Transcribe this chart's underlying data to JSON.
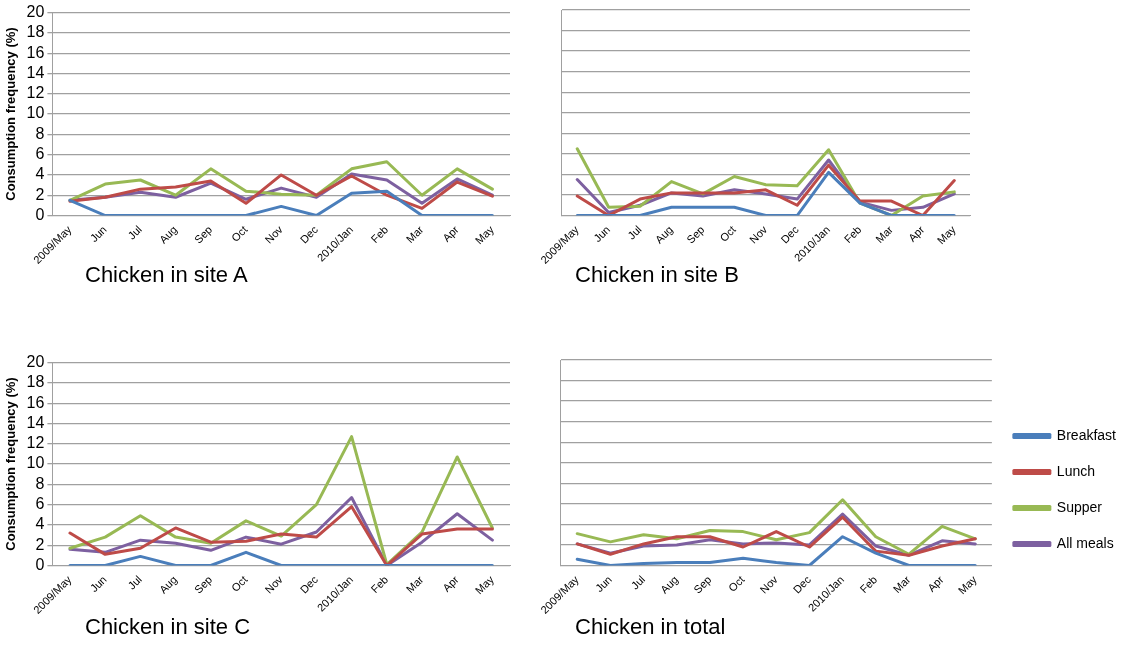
{
  "chart_data": [
    {
      "type": "line",
      "title": "Chicken in site A",
      "ylabel": "Consumption frequency (%)",
      "categories": [
        "2009/May",
        "Jun",
        "Jul",
        "Aug",
        "Sep",
        "Oct",
        "Nov",
        "Dec",
        "2010/Jan",
        "Feb",
        "Mar",
        "Apr",
        "May"
      ],
      "ylim": [
        0,
        20
      ],
      "yticks": [
        0,
        2,
        4,
        6,
        8,
        10,
        12,
        14,
        16,
        18,
        20
      ],
      "grid": "y",
      "legend": false,
      "marker": "none",
      "series": [
        {
          "color": "#4a7ebb",
          "values": [
            1.5,
            0,
            0,
            0,
            0,
            0,
            0.9,
            0,
            2.2,
            2.4,
            0,
            0,
            0
          ]
        },
        {
          "color": "#be4b48",
          "values": [
            1.4,
            1.8,
            2.6,
            2.8,
            3.4,
            1.2,
            4.0,
            2.0,
            3.9,
            2.0,
            0.7,
            3.3,
            1.9
          ]
        },
        {
          "color": "#98b954",
          "values": [
            1.5,
            3.1,
            3.5,
            2.0,
            4.6,
            2.4,
            2.1,
            2.0,
            4.6,
            5.3,
            2.0,
            4.6,
            2.6
          ]
        },
        {
          "color": "#7d60a0",
          "values": [
            1.5,
            1.8,
            2.3,
            1.8,
            3.2,
            1.6,
            2.7,
            1.8,
            4.1,
            3.5,
            1.2,
            3.6,
            2.0
          ]
        }
      ]
    },
    {
      "type": "line",
      "title": "Chicken in site B",
      "categories": [
        "2009/May",
        "Jun",
        "Jul",
        "Aug",
        "Sep",
        "Oct",
        "Nov",
        "Dec",
        "2010/Jan",
        "Feb",
        "Mar",
        "Apr",
        "May"
      ],
      "ylim": [
        0,
        20
      ],
      "yticks": [
        0,
        2,
        4,
        6,
        8,
        10,
        12,
        14,
        16,
        18,
        20
      ],
      "tick_labels": "x",
      "grid": "y",
      "legend": false,
      "marker": "none",
      "series": [
        {
          "color": "#4a7ebb",
          "values": [
            0,
            0,
            0,
            0.8,
            0.8,
            0.8,
            0,
            0,
            4.2,
            1.2,
            0,
            0,
            0
          ]
        },
        {
          "color": "#be4b48",
          "values": [
            1.9,
            0,
            1.6,
            2.2,
            2.2,
            2.2,
            2.5,
            1.0,
            4.9,
            1.4,
            1.4,
            0,
            3.4
          ]
        },
        {
          "color": "#98b954",
          "values": [
            6.5,
            0.8,
            0.9,
            3.3,
            2.1,
            3.8,
            3.0,
            2.9,
            6.4,
            1.2,
            0,
            1.9,
            2.3
          ]
        },
        {
          "color": "#7d60a0",
          "values": [
            3.5,
            0.3,
            1.0,
            2.2,
            1.9,
            2.5,
            2.1,
            1.6,
            5.4,
            1.3,
            0.5,
            0.8,
            2.1
          ]
        }
      ]
    },
    {
      "type": "line",
      "title": "Chicken in site C",
      "ylabel": "Consumption frequency (%)",
      "categories": [
        "2009/May",
        "Jun",
        "Jul",
        "Aug",
        "Sep",
        "Oct",
        "Nov",
        "Dec",
        "2010/Jan",
        "Feb",
        "Mar",
        "Apr",
        "May"
      ],
      "ylim": [
        0,
        20
      ],
      "yticks": [
        0,
        2,
        4,
        6,
        8,
        10,
        12,
        14,
        16,
        18,
        20
      ],
      "grid": "y",
      "legend": false,
      "marker": "none",
      "series": [
        {
          "color": "#4a7ebb",
          "values": [
            0,
            0,
            0.9,
            0,
            0,
            1.3,
            0,
            0,
            0,
            0,
            0,
            0,
            0
          ]
        },
        {
          "color": "#be4b48",
          "values": [
            3.2,
            1.1,
            1.7,
            3.7,
            2.3,
            2.4,
            3.1,
            2.8,
            5.8,
            0,
            3.1,
            3.6,
            3.6
          ]
        },
        {
          "color": "#98b954",
          "values": [
            1.7,
            2.8,
            4.9,
            2.8,
            2.2,
            4.4,
            2.9,
            6.0,
            12.7,
            0.1,
            3.3,
            10.7,
            3.7
          ]
        },
        {
          "color": "#7d60a0",
          "values": [
            1.6,
            1.3,
            2.5,
            2.2,
            1.5,
            2.8,
            2.1,
            3.3,
            6.7,
            0,
            2.3,
            5.1,
            2.5
          ]
        }
      ]
    },
    {
      "type": "line",
      "title": "Chicken in total",
      "categories": [
        "2009/May",
        "Jun",
        "Jul",
        "Aug",
        "Sep",
        "Oct",
        "Nov",
        "Dec",
        "2010/Jan",
        "Feb",
        "Mar",
        "Apr",
        "May"
      ],
      "ylim": [
        0,
        20
      ],
      "yticks": [
        0,
        2,
        4,
        6,
        8,
        10,
        12,
        14,
        16,
        18,
        20
      ],
      "tick_labels": "x",
      "grid": "y",
      "legend": "right",
      "marker": "none",
      "series": [
        {
          "name": "Breakfast",
          "color": "#4a7ebb",
          "values": [
            0.6,
            0,
            0.2,
            0.3,
            0.3,
            0.7,
            0.3,
            0,
            2.8,
            1.2,
            0,
            0,
            0
          ]
        },
        {
          "name": "Lunch",
          "color": "#be4b48",
          "values": [
            2.1,
            1.1,
            2.1,
            2.8,
            2.8,
            1.8,
            3.3,
            1.8,
            4.7,
            1.4,
            1.0,
            1.9,
            2.6
          ]
        },
        {
          "name": "Supper",
          "color": "#98b954",
          "values": [
            3.1,
            2.3,
            3.0,
            2.6,
            3.4,
            3.3,
            2.5,
            3.2,
            6.4,
            2.8,
            1.1,
            3.8,
            2.6
          ]
        },
        {
          "name": "All meals",
          "color": "#7d60a0",
          "values": [
            2.1,
            1.2,
            1.9,
            2.0,
            2.5,
            2.1,
            2.2,
            2.0,
            5.0,
            1.9,
            1.0,
            2.4,
            2.1
          ]
        }
      ]
    }
  ]
}
